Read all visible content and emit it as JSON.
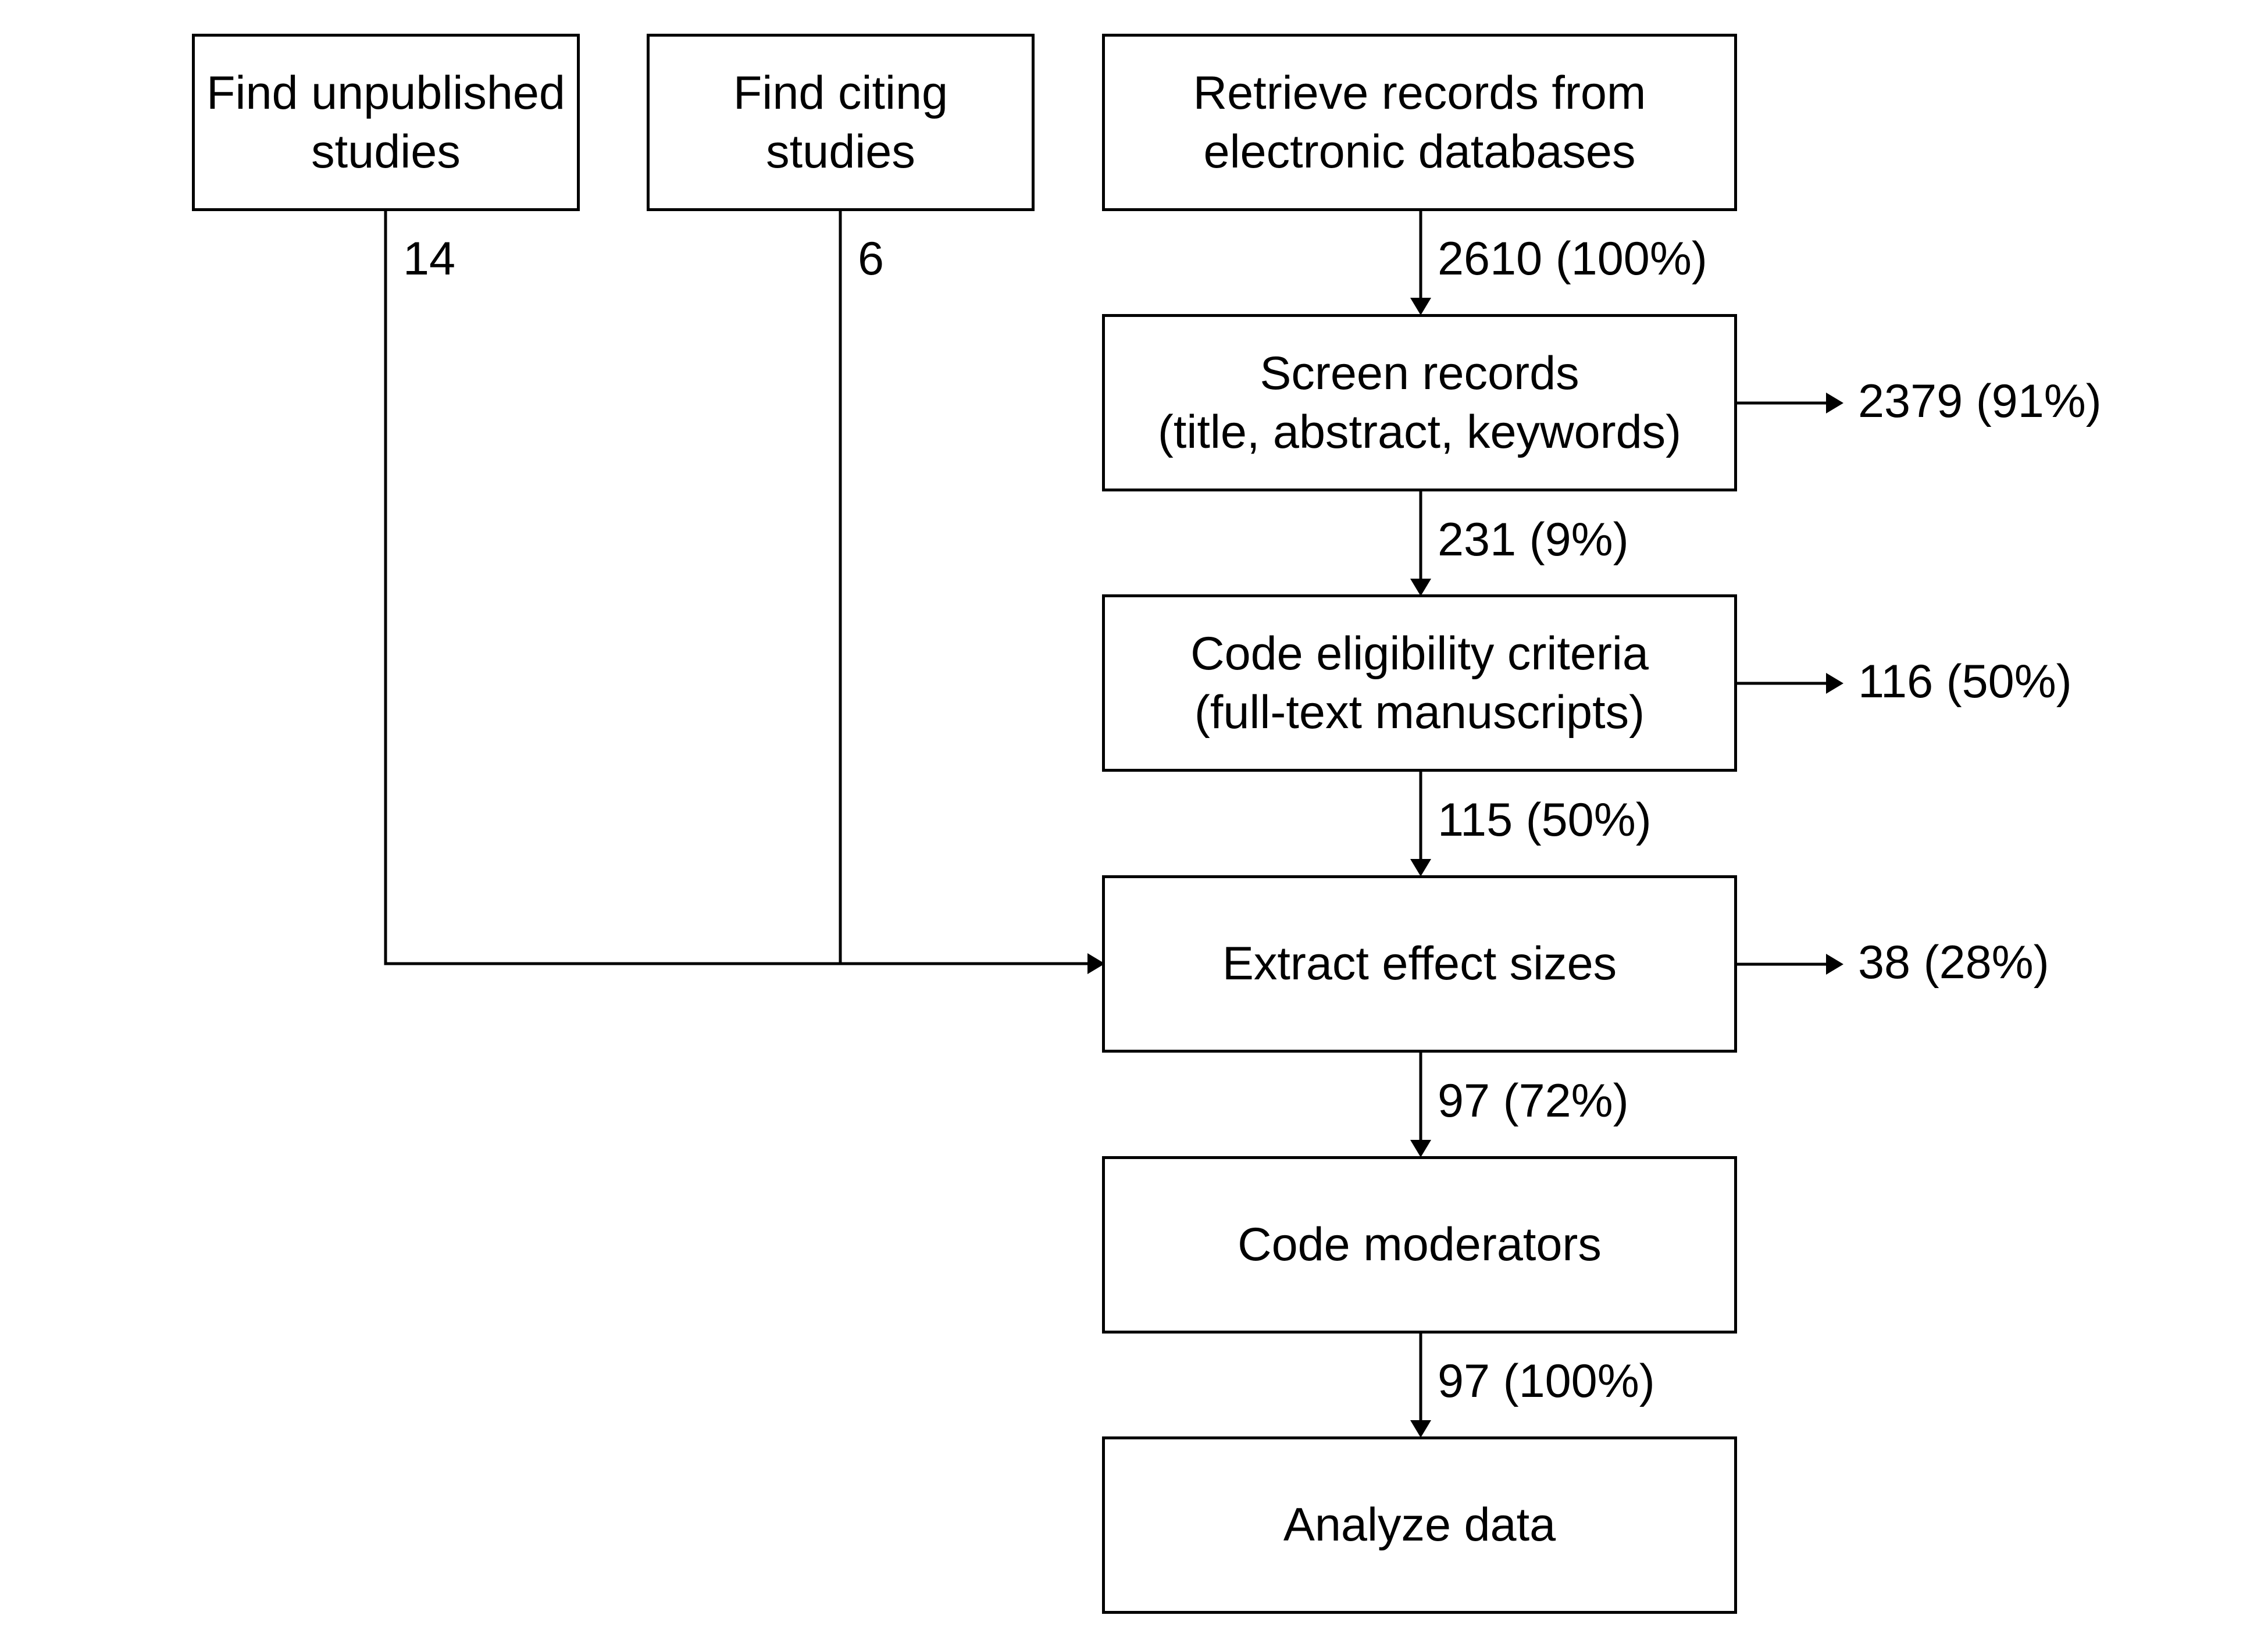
{
  "nodes": {
    "unpublished": {
      "lines": [
        "Find unpublished",
        "studies"
      ]
    },
    "citing": {
      "lines": [
        "Find citing",
        "studies"
      ]
    },
    "retrieve": {
      "lines": [
        "Retrieve records from",
        "electronic databases"
      ]
    },
    "screen": {
      "lines": [
        "Screen records",
        "(title, abstract, keywords)"
      ]
    },
    "eligibility": {
      "lines": [
        "Code eligibility criteria",
        "(full-text manuscripts)"
      ]
    },
    "extract": {
      "lines": [
        "Extract effect sizes"
      ]
    },
    "moderators": {
      "lines": [
        "Code moderators"
      ]
    },
    "analyze": {
      "lines": [
        "Analyze data"
      ]
    }
  },
  "flows": {
    "unpublished_count": "14",
    "citing_count": "6",
    "retrieve_to_screen": "2610 (100%)",
    "screen_to_eligibility": "231 (9%)",
    "screen_excluded": "2379 (91%)",
    "eligibility_to_extract": "115 (50%)",
    "eligibility_excluded": "116 (50%)",
    "extract_to_moderators": "97 (72%)",
    "extract_excluded": "38 (28%)",
    "moderators_to_analyze": "97 (100%)"
  }
}
